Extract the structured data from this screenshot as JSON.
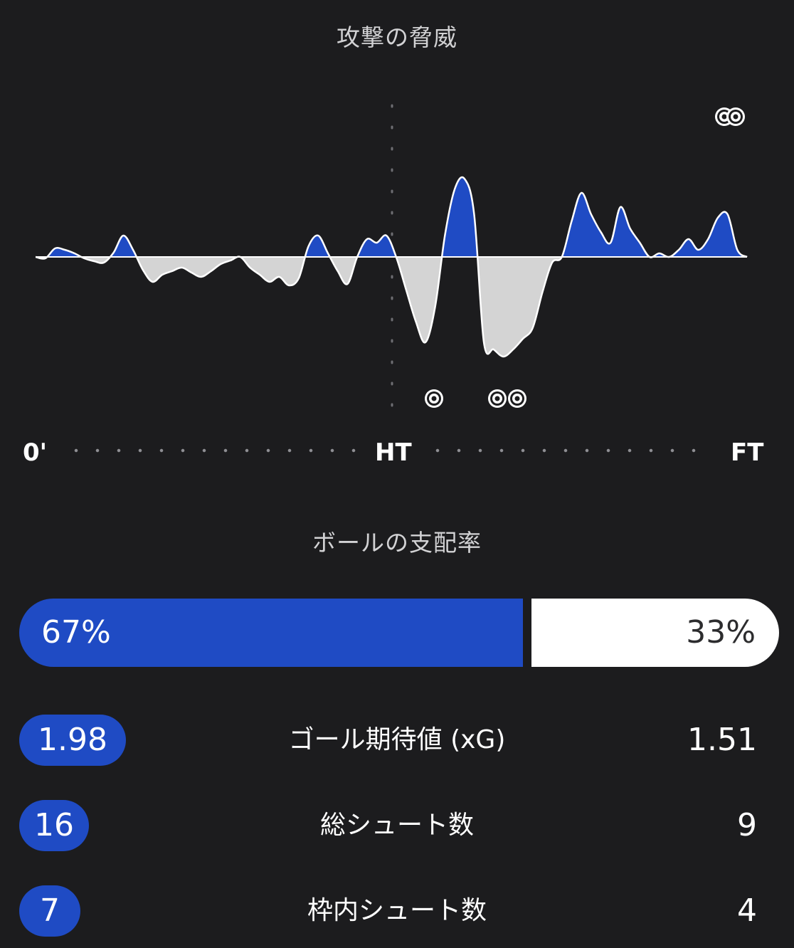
{
  "momentum": {
    "title": "攻撃の脅威",
    "colors": {
      "home": "#1f4bc4",
      "away": "#d4d4d4",
      "outline": "#ffffff"
    },
    "timeline": {
      "start": "0'",
      "half": "HT",
      "end": "FT"
    },
    "goals": [
      {
        "team": "away",
        "count": 1,
        "icon": "soccer-ball-icon"
      },
      {
        "team": "away",
        "count": 2,
        "icon": "soccer-ball-icon"
      },
      {
        "team": "home",
        "count": 2,
        "icon": "soccer-ball-icon"
      }
    ]
  },
  "chart_data": {
    "type": "area",
    "title": "攻撃の脅威",
    "xlabel": "",
    "ylabel": "",
    "x_ticks": [
      "0'",
      "HT",
      "FT"
    ],
    "series": [
      {
        "values": [
          0,
          -2,
          12,
          10,
          5,
          -2,
          -6,
          -8,
          6,
          30,
          10,
          -18,
          -35,
          -25,
          -20,
          -15,
          -22,
          -28,
          -20,
          -10,
          -5,
          0,
          -15,
          -25,
          -35,
          -28,
          -40,
          -30,
          15,
          30,
          5,
          -20,
          -38,
          0,
          25,
          20,
          30,
          0,
          -45,
          -90,
          -120,
          -70,
          30,
          95,
          110,
          60,
          -120,
          -130,
          -140,
          -130,
          -115,
          -100,
          -50,
          -8,
          0,
          50,
          90,
          60,
          35,
          20,
          70,
          40,
          20,
          0,
          5,
          0,
          10,
          25,
          10,
          25,
          55,
          60,
          10,
          0
        ]
      }
    ]
  },
  "possession": {
    "title": "ボールの支配率",
    "home_value": "67%",
    "away_value": "33%"
  },
  "stats": [
    {
      "label": "ゴール期待値 (xG)",
      "home": "1.98",
      "away": "1.51"
    },
    {
      "label": "総シュート数",
      "home": "16",
      "away": "9"
    },
    {
      "label": "枠内シュート数",
      "home": "7",
      "away": "4"
    }
  ]
}
